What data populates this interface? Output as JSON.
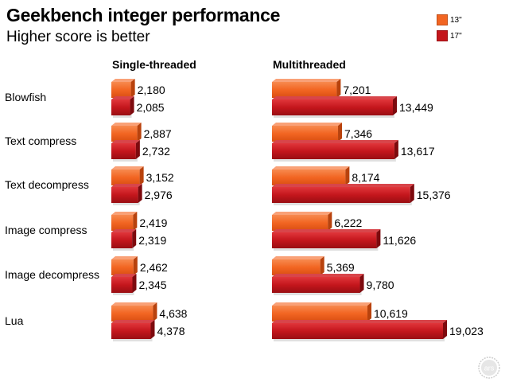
{
  "chart_data": {
    "type": "bar",
    "title": "Geekbench integer performance",
    "subtitle": "Higher score is better",
    "categories": [
      "Blowfish",
      "Text compress",
      "Text decompress",
      "Image compress",
      "Image decompress",
      "Lua"
    ],
    "legend": [
      {
        "name": "13\"",
        "color": "#f26522"
      },
      {
        "name": "17\"",
        "color": "#c4161c"
      }
    ],
    "panels": [
      {
        "title": "Single-threaded",
        "series": [
          {
            "name": "13\"",
            "values": [
              2180,
              2887,
              3152,
              2419,
              2462,
              4638
            ],
            "labels": [
              "2,180",
              "2,887",
              "3,152",
              "2,419",
              "2,462",
              "4,638"
            ]
          },
          {
            "name": "17\"",
            "values": [
              2085,
              2732,
              2976,
              2319,
              2345,
              4378
            ],
            "labels": [
              "2,085",
              "2,732",
              "2,976",
              "2,319",
              "2,345",
              "4,378"
            ]
          }
        ]
      },
      {
        "title": "Multithreaded",
        "series": [
          {
            "name": "13\"",
            "values": [
              7201,
              7346,
              8174,
              6222,
              5369,
              10619
            ],
            "labels": [
              "7,201",
              "7,346",
              "8,174",
              "6,222",
              "5,369",
              "10,619"
            ]
          },
          {
            "name": "17\"",
            "values": [
              13449,
              13617,
              15376,
              11626,
              9780,
              19023
            ],
            "labels": [
              "13,449",
              "13,617",
              "15,376",
              "11,626",
              "9,780",
              "19,023"
            ]
          }
        ]
      }
    ],
    "legend_position": "top-right",
    "grid": false
  },
  "logo": {
    "text": "ars",
    "icon": "ars-technica-logo-icon"
  }
}
